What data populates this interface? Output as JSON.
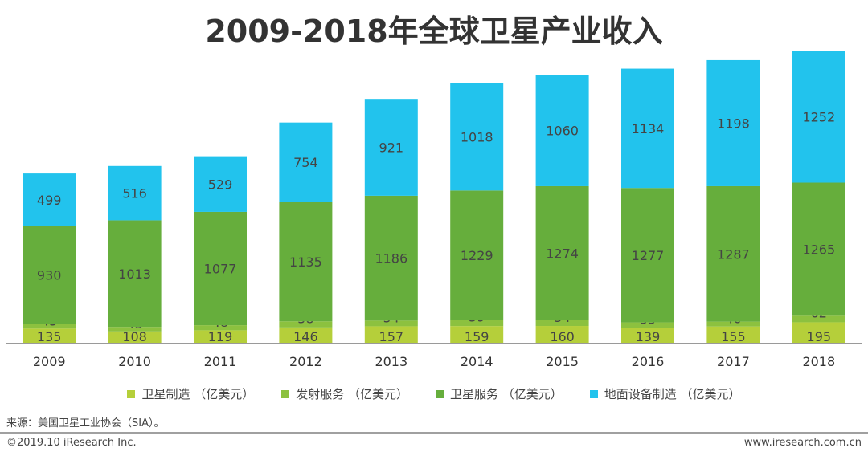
{
  "chart_data": {
    "type": "bar",
    "stacked": true,
    "title": "2009-2018年全球卫星产业收入",
    "categories": [
      "2009",
      "2010",
      "2011",
      "2012",
      "2013",
      "2014",
      "2015",
      "2016",
      "2017",
      "2018"
    ],
    "series": [
      {
        "name": "卫星制造 （亿美元）",
        "color": "#b5cf3a",
        "values": [
          135,
          108,
          119,
          146,
          157,
          159,
          160,
          139,
          155,
          195
        ]
      },
      {
        "name": "发射服务 （亿美元）",
        "color": "#8cc13f",
        "values": [
          45,
          43,
          48,
          58,
          54,
          59,
          54,
          55,
          46,
          62
        ]
      },
      {
        "name": "卫星服务 （亿美元）",
        "color": "#66ae3c",
        "values": [
          930,
          1013,
          1077,
          1135,
          1186,
          1229,
          1274,
          1277,
          1287,
          1265
        ]
      },
      {
        "name": "地面设备制造 （亿美元）",
        "color": "#22c3ed",
        "values": [
          499,
          516,
          529,
          754,
          921,
          1018,
          1060,
          1134,
          1198,
          1252
        ]
      }
    ],
    "ylim": [
      0,
      2800
    ],
    "grid": false,
    "legend": "bottom",
    "xlabel": "",
    "ylabel": ""
  },
  "source": "来源：美国卫星工业协会（SIA）。",
  "copyright": "©2019.10 iResearch Inc.",
  "website": "www.iresearch.com.cn"
}
